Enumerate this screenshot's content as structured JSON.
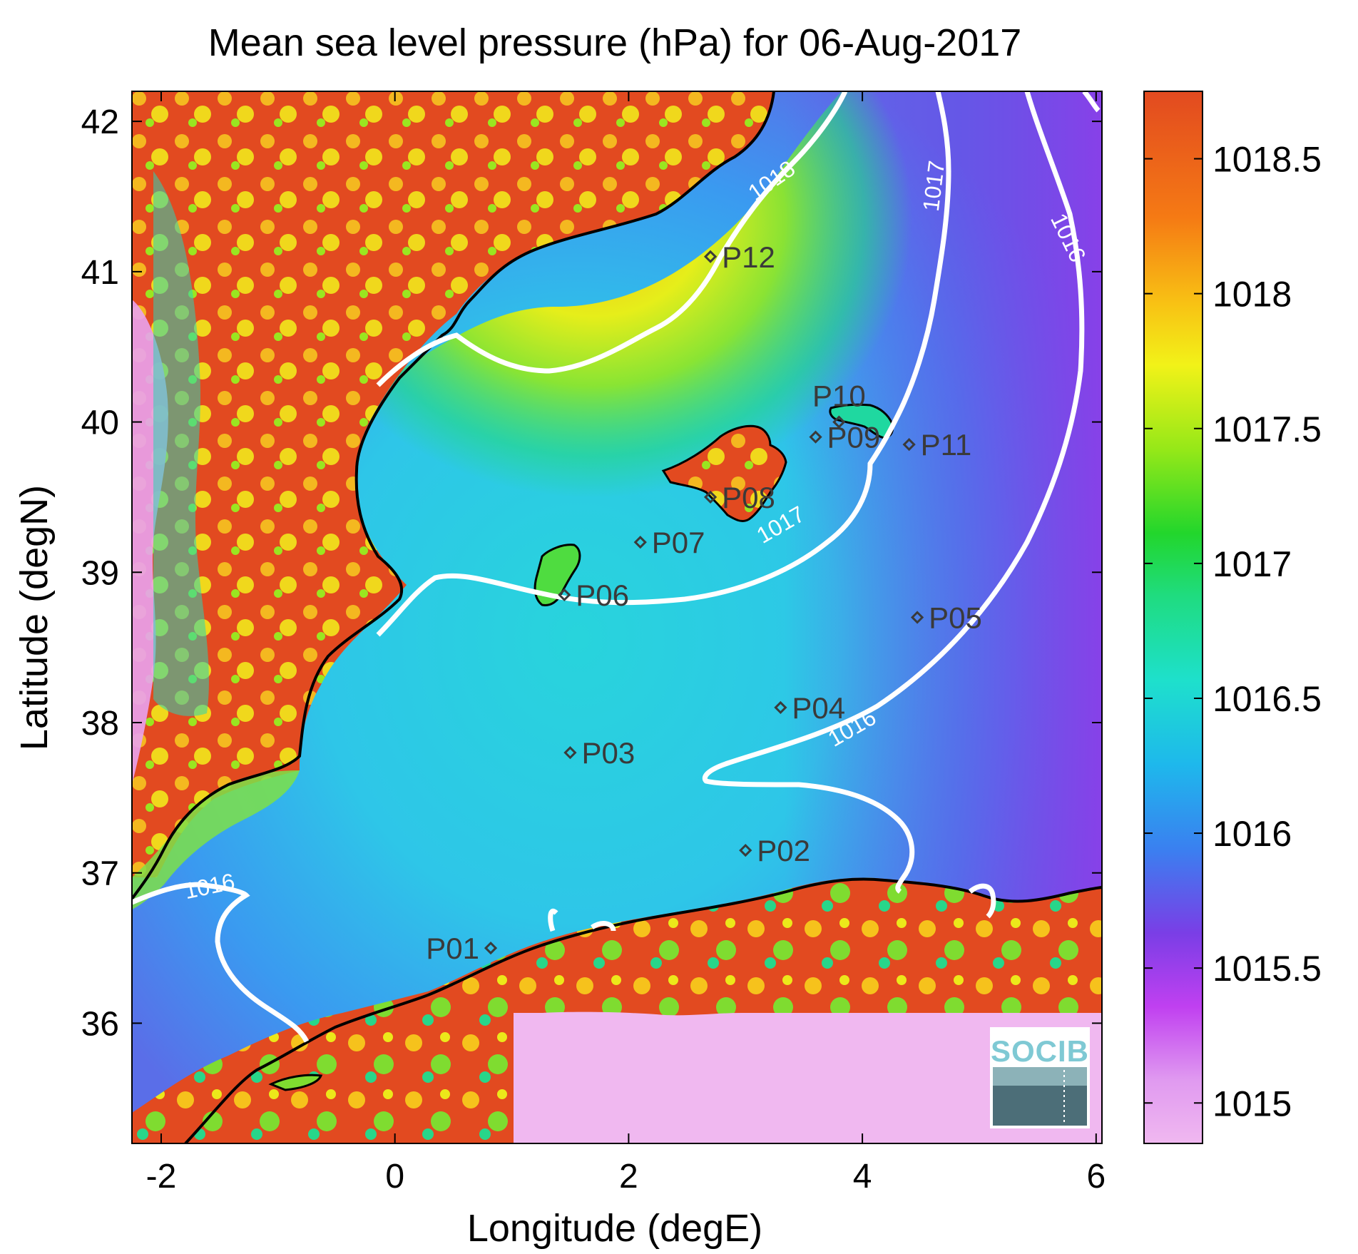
{
  "title": "Mean sea level pressure (hPa) for 06-Aug-2017",
  "axes": {
    "xlabel": "Longitude (degE)",
    "ylabel": "Latitude (degN)",
    "xlim": [
      -2.25,
      6.05
    ],
    "ylim": [
      35.2,
      42.2
    ],
    "xticks": [
      -2,
      0,
      2,
      4,
      6
    ],
    "yticks": [
      36,
      37,
      38,
      39,
      40,
      41,
      42
    ]
  },
  "colorbar": {
    "range": [
      1014.85,
      1018.75
    ],
    "ticks": [
      1015,
      1015.5,
      1016,
      1016.5,
      1017,
      1017.5,
      1018,
      1018.5
    ],
    "colormap": [
      "#f0b8f0",
      "#c040f0",
      "#7a3ee6",
      "#3a80f0",
      "#1ecfe8",
      "#1fdc9a",
      "#22d62c",
      "#96e818",
      "#f2f218",
      "#f8b414",
      "#f46a14",
      "#e24a20"
    ]
  },
  "contour_labels": [
    "1018",
    "1017",
    "1016",
    "1017",
    "1016",
    "1016"
  ],
  "logo": {
    "text": "SOCIB"
  },
  "chart_data": {
    "type": "map",
    "title": "Mean sea level pressure (hPa) for 06-Aug-2017",
    "xlabel": "Longitude (degE)",
    "ylabel": "Latitude (degN)",
    "xlim": [
      -2.25,
      6.05
    ],
    "ylim": [
      35.2,
      42.2
    ],
    "colorbar_ticks": [
      1015,
      1015.5,
      1016,
      1016.5,
      1017,
      1017.5,
      1018,
      1018.5
    ],
    "stations": [
      {
        "name": "P01",
        "lon": 0.82,
        "lat": 36.5
      },
      {
        "name": "P02",
        "lon": 3.0,
        "lat": 37.15
      },
      {
        "name": "P03",
        "lon": 1.5,
        "lat": 37.8
      },
      {
        "name": "P04",
        "lon": 3.3,
        "lat": 38.1
      },
      {
        "name": "P05",
        "lon": 4.47,
        "lat": 38.7
      },
      {
        "name": "P06",
        "lon": 1.45,
        "lat": 38.85
      },
      {
        "name": "P07",
        "lon": 2.1,
        "lat": 39.2
      },
      {
        "name": "P08",
        "lon": 2.7,
        "lat": 39.5
      },
      {
        "name": "P09",
        "lon": 3.6,
        "lat": 39.9
      },
      {
        "name": "P10",
        "lon": 3.8,
        "lat": 40.0
      },
      {
        "name": "P11",
        "lon": 4.4,
        "lat": 39.85
      },
      {
        "name": "P12",
        "lon": 2.7,
        "lat": 41.1
      }
    ],
    "contours": [
      1016,
      1017,
      1018
    ]
  }
}
